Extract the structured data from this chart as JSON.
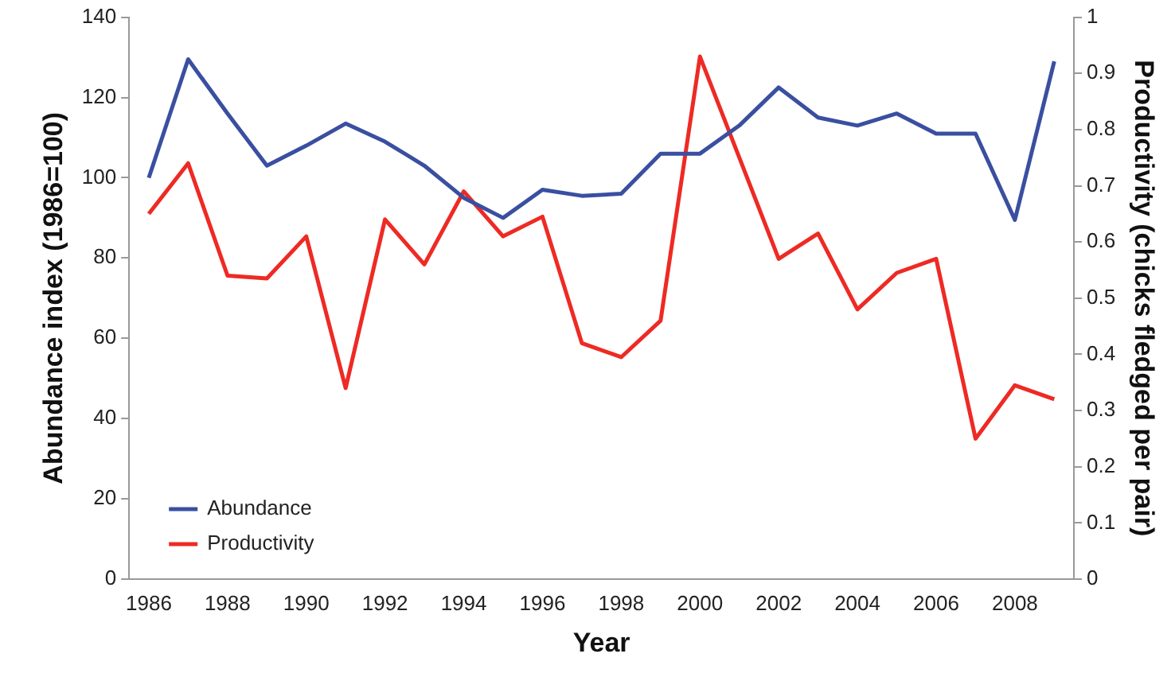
{
  "chart_data": {
    "type": "line",
    "xlabel": "Year",
    "ylabel": "Abundance index (1986=100)",
    "y2label": "Productivity (chicks fledged per pair)",
    "categories": [
      "1986",
      null,
      "1988",
      null,
      "1990",
      null,
      "1992",
      null,
      "1994",
      null,
      "1996",
      null,
      "1998",
      null,
      "2000",
      null,
      "2002",
      null,
      "2004",
      null,
      "2006",
      null,
      "2008",
      null
    ],
    "series": [
      {
        "name": "Abundance",
        "color": "#3a4fa0",
        "values": [
          100,
          129.5,
          116,
          103,
          108,
          113.5,
          109,
          103,
          95,
          90,
          97,
          95.5,
          96,
          106,
          106,
          113,
          122.5,
          115,
          113,
          116,
          111,
          111,
          89.5,
          129
        ]
      },
      {
        "name": "Productivity",
        "color": "#ee2a24",
        "axis": "y2",
        "values": [
          0.65,
          0.74,
          0.54,
          0.535,
          0.61,
          0.34,
          0.64,
          0.56,
          0.69,
          0.61,
          0.645,
          0.42,
          0.395,
          0.46,
          0.93,
          0.75,
          0.57,
          0.615,
          0.48,
          0.545,
          0.57,
          0.25,
          0.345,
          0.32
        ]
      }
    ],
    "ylim": [
      0,
      140
    ],
    "yticks": [
      0,
      20,
      40,
      60,
      80,
      100,
      120,
      140
    ],
    "y2lim": [
      0,
      1
    ],
    "y2ticks": [
      0,
      0.1,
      0.2,
      0.3,
      0.4,
      0.5,
      0.6,
      0.7,
      0.8,
      0.9,
      1
    ],
    "grid": false,
    "legend": "bottom left",
    "marker": "none",
    "line_style": "solid"
  }
}
